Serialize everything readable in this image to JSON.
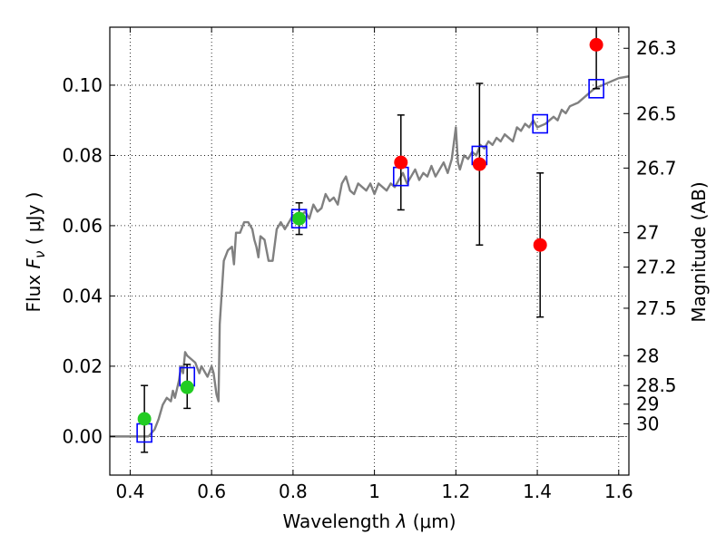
{
  "chart_data": {
    "type": "scatter",
    "xlabel": "Wavelength",
    "xlabel_symbol": "λ",
    "xlabel_unit": "(μm)",
    "ylabel": "Flux",
    "ylabel_symbol": "F",
    "ylabel_subscript": "ν",
    "ylabel_unit": "( μJy )",
    "ylabel_right": "Magnitude (AB)",
    "xlim": [
      0.35,
      1.625
    ],
    "ylim": [
      -0.011,
      0.1165
    ],
    "grid": true,
    "x_ticks": [
      {
        "value": 0.4,
        "label": "0.4"
      },
      {
        "value": 0.6,
        "label": "0.6"
      },
      {
        "value": 0.8,
        "label": "0.8"
      },
      {
        "value": 1.0,
        "label": "1"
      },
      {
        "value": 1.2,
        "label": "1.2"
      },
      {
        "value": 1.4,
        "label": "1.4"
      },
      {
        "value": 1.6,
        "label": "1.6"
      }
    ],
    "y_ticks": [
      {
        "value": 0.0,
        "label": "0.00"
      },
      {
        "value": 0.02,
        "label": "0.02"
      },
      {
        "value": 0.04,
        "label": "0.04"
      },
      {
        "value": 0.06,
        "label": "0.06"
      },
      {
        "value": 0.08,
        "label": "0.08"
      },
      {
        "value": 0.1,
        "label": "0.10"
      }
    ],
    "right_ticks": [
      {
        "label": "26.3",
        "flux": 0.1105
      },
      {
        "label": "26.5",
        "flux": 0.0919
      },
      {
        "label": "26.7",
        "flux": 0.0764
      },
      {
        "label": "27",
        "flux": 0.058
      },
      {
        "label": "27.2",
        "flux": 0.0482
      },
      {
        "label": "27.5",
        "flux": 0.0365
      },
      {
        "label": "28",
        "flux": 0.023
      },
      {
        "label": "28.5",
        "flux": 0.0145
      },
      {
        "label": "29",
        "flux": 0.0092
      },
      {
        "label": "30",
        "flux": 0.0036
      }
    ],
    "colors": {
      "spectrum": "#808080",
      "model": "#0000ff",
      "green": "#22cc22",
      "red": "#ff0000",
      "errorbar": "#000000"
    },
    "series": [
      {
        "kind": "spectrum",
        "points": [
          [
            0.35,
            0.0
          ],
          [
            0.445,
            0.0
          ],
          [
            0.46,
            0.002
          ],
          [
            0.47,
            0.005
          ],
          [
            0.48,
            0.009
          ],
          [
            0.49,
            0.011
          ],
          [
            0.5,
            0.01
          ],
          [
            0.505,
            0.013
          ],
          [
            0.51,
            0.011
          ],
          [
            0.52,
            0.016
          ],
          [
            0.525,
            0.02
          ],
          [
            0.53,
            0.018
          ],
          [
            0.535,
            0.024
          ],
          [
            0.54,
            0.023
          ],
          [
            0.55,
            0.022
          ],
          [
            0.56,
            0.021
          ],
          [
            0.57,
            0.018
          ],
          [
            0.575,
            0.02
          ],
          [
            0.58,
            0.019
          ],
          [
            0.59,
            0.017
          ],
          [
            0.6,
            0.02
          ],
          [
            0.605,
            0.018
          ],
          [
            0.612,
            0.012
          ],
          [
            0.617,
            0.01
          ],
          [
            0.62,
            0.032
          ],
          [
            0.63,
            0.05
          ],
          [
            0.64,
            0.053
          ],
          [
            0.65,
            0.054
          ],
          [
            0.655,
            0.049
          ],
          [
            0.66,
            0.058
          ],
          [
            0.67,
            0.058
          ],
          [
            0.68,
            0.061
          ],
          [
            0.69,
            0.061
          ],
          [
            0.7,
            0.059
          ],
          [
            0.705,
            0.056
          ],
          [
            0.71,
            0.054
          ],
          [
            0.715,
            0.051
          ],
          [
            0.72,
            0.057
          ],
          [
            0.73,
            0.056
          ],
          [
            0.74,
            0.05
          ],
          [
            0.75,
            0.05
          ],
          [
            0.76,
            0.059
          ],
          [
            0.77,
            0.061
          ],
          [
            0.78,
            0.059
          ],
          [
            0.79,
            0.061
          ],
          [
            0.8,
            0.063
          ],
          [
            0.81,
            0.062
          ],
          [
            0.82,
            0.063
          ],
          [
            0.83,
            0.064
          ],
          [
            0.84,
            0.062
          ],
          [
            0.85,
            0.066
          ],
          [
            0.86,
            0.064
          ],
          [
            0.87,
            0.065
          ],
          [
            0.88,
            0.069
          ],
          [
            0.89,
            0.067
          ],
          [
            0.9,
            0.068
          ],
          [
            0.91,
            0.066
          ],
          [
            0.92,
            0.072
          ],
          [
            0.93,
            0.074
          ],
          [
            0.94,
            0.07
          ],
          [
            0.95,
            0.069
          ],
          [
            0.96,
            0.072
          ],
          [
            0.97,
            0.071
          ],
          [
            0.98,
            0.07
          ],
          [
            0.99,
            0.072
          ],
          [
            1.0,
            0.069
          ],
          [
            1.01,
            0.072
          ],
          [
            1.02,
            0.071
          ],
          [
            1.03,
            0.07
          ],
          [
            1.04,
            0.072
          ],
          [
            1.05,
            0.071
          ],
          [
            1.06,
            0.073
          ],
          [
            1.07,
            0.075
          ],
          [
            1.08,
            0.072
          ],
          [
            1.09,
            0.074
          ],
          [
            1.1,
            0.076
          ],
          [
            1.11,
            0.073
          ],
          [
            1.12,
            0.075
          ],
          [
            1.13,
            0.074
          ],
          [
            1.14,
            0.077
          ],
          [
            1.15,
            0.074
          ],
          [
            1.16,
            0.076
          ],
          [
            1.17,
            0.078
          ],
          [
            1.18,
            0.075
          ],
          [
            1.19,
            0.079
          ],
          [
            1.2,
            0.088
          ],
          [
            1.205,
            0.078
          ],
          [
            1.21,
            0.076
          ],
          [
            1.22,
            0.08
          ],
          [
            1.23,
            0.079
          ],
          [
            1.24,
            0.081
          ],
          [
            1.25,
            0.08
          ],
          [
            1.26,
            0.083
          ],
          [
            1.27,
            0.082
          ],
          [
            1.28,
            0.084
          ],
          [
            1.29,
            0.083
          ],
          [
            1.3,
            0.085
          ],
          [
            1.31,
            0.084
          ],
          [
            1.32,
            0.086
          ],
          [
            1.33,
            0.085
          ],
          [
            1.34,
            0.084
          ],
          [
            1.35,
            0.088
          ],
          [
            1.36,
            0.087
          ],
          [
            1.37,
            0.089
          ],
          [
            1.38,
            0.088
          ],
          [
            1.39,
            0.09
          ],
          [
            1.4,
            0.088
          ],
          [
            1.42,
            0.089
          ],
          [
            1.44,
            0.091
          ],
          [
            1.45,
            0.09
          ],
          [
            1.46,
            0.093
          ],
          [
            1.47,
            0.092
          ],
          [
            1.48,
            0.094
          ],
          [
            1.5,
            0.095
          ],
          [
            1.52,
            0.097
          ],
          [
            1.54,
            0.099
          ],
          [
            1.56,
            0.1
          ],
          [
            1.58,
            0.101
          ],
          [
            1.6,
            0.102
          ],
          [
            1.625,
            0.1025
          ]
        ]
      },
      {
        "kind": "model",
        "points": [
          [
            0.435,
            0.001
          ],
          [
            0.54,
            0.017
          ],
          [
            0.815,
            0.062
          ],
          [
            1.065,
            0.074
          ],
          [
            1.258,
            0.08
          ],
          [
            1.407,
            0.089
          ],
          [
            1.545,
            0.099
          ]
        ]
      },
      {
        "kind": "green",
        "points": [
          [
            0.435,
            0.005,
            -0.0095,
            0.0095
          ],
          [
            0.54,
            0.014,
            -0.006,
            0.0065
          ],
          [
            0.815,
            0.062,
            -0.0045,
            0.0045
          ]
        ]
      },
      {
        "kind": "red",
        "points": [
          [
            1.065,
            0.078,
            -0.0135,
            0.0135
          ],
          [
            1.258,
            0.0775,
            -0.023,
            0.023
          ],
          [
            1.407,
            0.0545,
            -0.0205,
            0.0205
          ],
          [
            1.545,
            0.1115,
            -0.0125,
            0.0125
          ]
        ]
      }
    ]
  }
}
